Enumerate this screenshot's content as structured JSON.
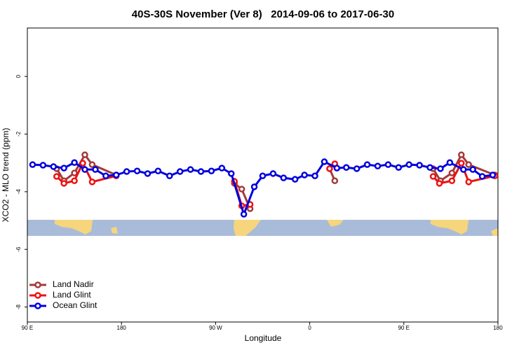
{
  "chart_data": {
    "type": "line",
    "title": "40S-30S November (Ver 8)   2014-09-06 to 2017-06-30",
    "x_label": "Longitude",
    "y_label": "XCO2 - MLO trend (ppm)",
    "xlim": [
      90,
      540
    ],
    "ylim": [
      -8.52,
      1.68
    ],
    "xticks": [
      {
        "value": 90,
        "label": "90 E"
      },
      180,
      {
        "value": 270,
        "label": "90 W"
      },
      {
        "value": 360,
        "label": "0"
      },
      {
        "value": 450,
        "label": "90 E"
      },
      {
        "value": 540,
        "label": "180"
      }
    ],
    "yticks": [
      0,
      -2,
      -4,
      -6,
      -8
    ],
    "legend": "bottom-left",
    "series": [
      {
        "name": "Land Nadir",
        "color": "#a33a3a",
        "x": [
          118,
          125,
          135,
          145,
          152,
          175,
          null,
          288,
          295,
          303,
          null,
          379,
          384,
          null,
          478,
          485,
          496,
          505,
          512,
          537
        ],
        "values": [
          -3.2,
          -3.62,
          -3.35,
          -2.72,
          -3.06,
          -3.42,
          null,
          -3.71,
          -3.91,
          -4.59,
          null,
          -3.2,
          -3.62,
          null,
          -3.2,
          -3.62,
          -3.35,
          -2.72,
          -3.06,
          -3.42
        ]
      },
      {
        "name": "Land Glint",
        "color": "#ee1111",
        "x": [
          118,
          125,
          135,
          143,
          152,
          175,
          null,
          288,
          295,
          303,
          null,
          379,
          384,
          null,
          478,
          484,
          496,
          505,
          512,
          537
        ],
        "values": [
          -3.47,
          -3.71,
          -3.62,
          -3.01,
          -3.66,
          -3.45,
          null,
          -3.64,
          -4.49,
          -4.44,
          null,
          -3.2,
          -3.03,
          null,
          -3.47,
          -3.71,
          -3.62,
          -3.01,
          -3.66,
          -3.45
        ]
      },
      {
        "name": "Ocean Glint",
        "color": "#0000dd",
        "x": [
          95,
          105,
          115,
          125,
          135,
          145,
          155,
          165,
          175,
          185,
          195,
          205,
          215,
          226,
          236,
          246,
          256,
          266,
          276,
          285,
          297,
          307,
          315,
          325,
          335,
          346,
          355,
          365,
          374,
          386,
          395,
          405,
          415,
          425,
          435,
          445,
          455,
          465,
          475,
          485,
          494,
          507,
          516,
          525,
          535
        ],
        "values": [
          -3.06,
          -3.08,
          -3.13,
          -3.18,
          -2.99,
          -3.23,
          -3.23,
          -3.45,
          -3.42,
          -3.3,
          -3.28,
          -3.37,
          -3.28,
          -3.45,
          -3.3,
          -3.23,
          -3.3,
          -3.28,
          -3.18,
          -3.37,
          -4.78,
          -3.83,
          -3.45,
          -3.37,
          -3.52,
          -3.57,
          -3.42,
          -3.45,
          -2.96,
          -3.18,
          -3.16,
          -3.2,
          -3.06,
          -3.11,
          -3.06,
          -3.16,
          -3.06,
          -3.08,
          -3.16,
          -3.2,
          -2.99,
          -3.23,
          -3.23,
          -3.47,
          -3.42
        ]
      }
    ]
  }
}
